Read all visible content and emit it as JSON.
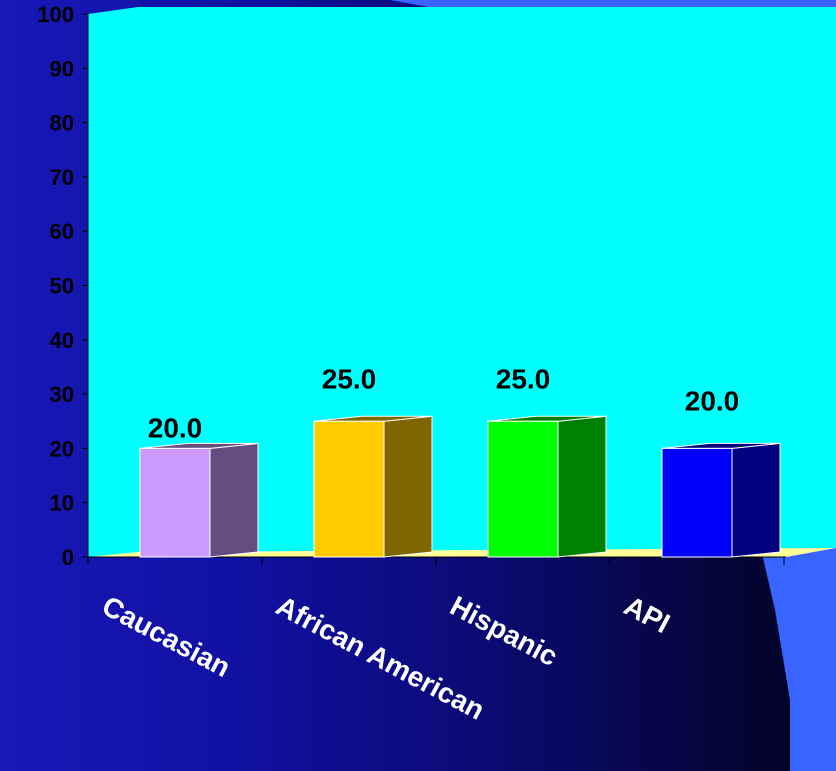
{
  "colors": {
    "background_left": "#1818b8",
    "background_right": "#02021e",
    "accent_shape": "#3a64ff",
    "plot_area": "#00ffff",
    "floor": "#ffff99"
  },
  "chart_data": {
    "type": "bar",
    "style": "3d",
    "title": "",
    "xlabel": "",
    "ylabel": "",
    "categories": [
      "Caucasian",
      "African American",
      "Hispanic",
      "API"
    ],
    "values": [
      20,
      25,
      25,
      20
    ],
    "data_labels": [
      "20.0",
      "25.0",
      "25.0",
      "20.0"
    ],
    "ylim": [
      0,
      100
    ],
    "y_ticks": [
      0,
      10,
      20,
      30,
      40,
      50,
      60,
      70,
      80,
      90,
      100
    ],
    "grid": false,
    "legend": "none",
    "bar_colors": [
      {
        "front": "#cc99ff",
        "side": "#664d80"
      },
      {
        "front": "#ffcc00",
        "side": "#806600"
      },
      {
        "front": "#00ff00",
        "side": "#008000"
      },
      {
        "front": "#0000ff",
        "side": "#000080"
      }
    ]
  }
}
